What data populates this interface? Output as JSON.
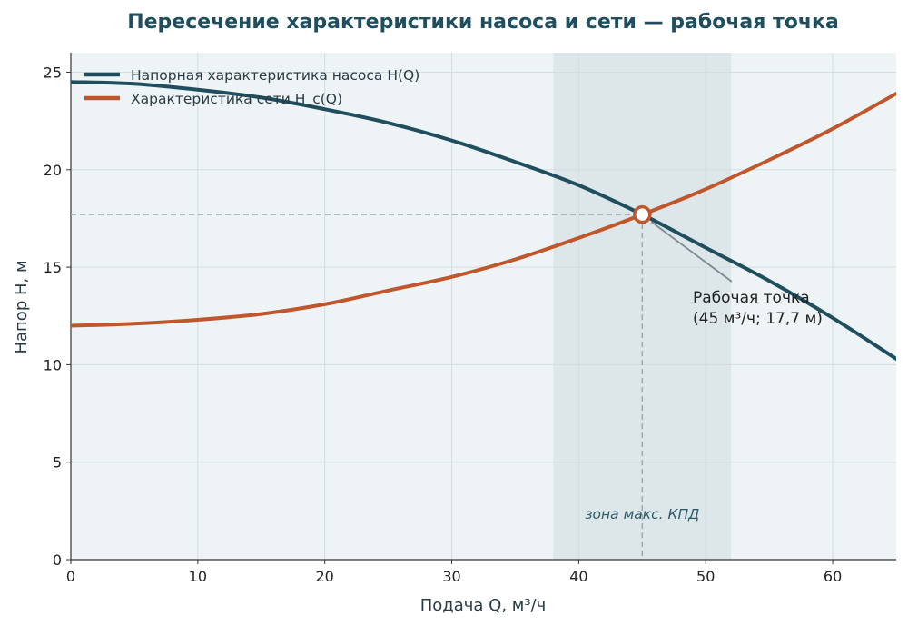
{
  "chart_data": {
    "type": "line",
    "title": "Пересечение характеристики насоса и сети — рабочая точка",
    "xlabel": "Подача Q, м³/ч",
    "ylabel": "Напор H, м",
    "xlim": [
      0,
      65
    ],
    "ylim": [
      0,
      26
    ],
    "x_ticks": [
      0,
      10,
      20,
      30,
      40,
      50,
      60
    ],
    "y_ticks": [
      0,
      5,
      10,
      15,
      20,
      25
    ],
    "grid": true,
    "legend_position": "top-left",
    "series": [
      {
        "name": "Напорная характеристика насоса H(Q)",
        "color": "#1f4e5f",
        "x": [
          0,
          5,
          10,
          15,
          20,
          25,
          30,
          35,
          40,
          45,
          50,
          55,
          60,
          65
        ],
        "y": [
          24.5,
          24.4,
          24.1,
          23.7,
          23.1,
          22.4,
          21.5,
          20.4,
          19.2,
          17.7,
          16.0,
          14.3,
          12.4,
          10.3
        ]
      },
      {
        "name": "Характеристика сети H_c(Q)",
        "color": "#c0562c",
        "x": [
          0,
          5,
          10,
          15,
          20,
          25,
          30,
          35,
          40,
          45,
          50,
          55,
          60,
          65
        ],
        "y": [
          12.0,
          12.1,
          12.3,
          12.6,
          13.1,
          13.8,
          14.5,
          15.4,
          16.5,
          17.7,
          19.0,
          20.5,
          22.1,
          23.9
        ]
      }
    ],
    "operating_point": {
      "x": 45,
      "y": 17.7,
      "label_line1": "Рабочая точка",
      "label_line2": "(45 м³/ч; 17,7 м)",
      "color": "#c0562c"
    },
    "max_efficiency_zone": {
      "x_from": 38,
      "x_to": 52,
      "label": "зона макс. КПД"
    },
    "colors": {
      "plot_background": "#eef4f5",
      "zone_fill": "#dde6e8",
      "grid": "#d3dcdf",
      "guide_line": "#a0a8ab",
      "title": "#1f4e5f"
    }
  }
}
